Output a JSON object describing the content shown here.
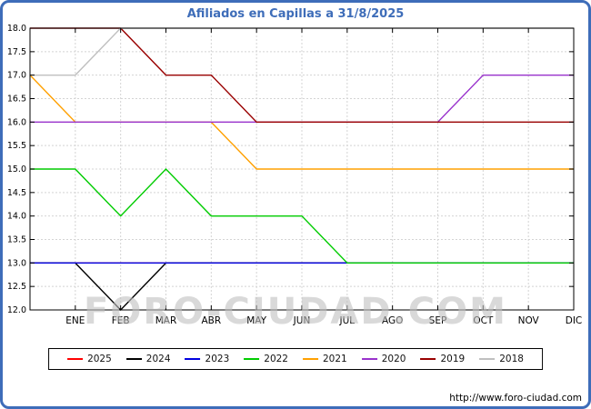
{
  "title": {
    "text": "Afiliados en Capillas a 31/8/2025"
  },
  "watermark": "FORO-CIUDAD.COM",
  "footer": {
    "url": "http://www.foro-ciudad.com"
  },
  "colors": {
    "frame": "#3e6db9",
    "title": "#3e6db9",
    "grid": "#d4d4d4",
    "axis": "#000000"
  },
  "chart_data": {
    "type": "line",
    "title": "Afiliados en Capillas a 31/8/2025",
    "xlabel": "",
    "ylabel": "",
    "ylim": [
      12,
      18
    ],
    "ytick_step": 0.5,
    "ytick_labels": [
      "18.0",
      "17.5",
      "17.0",
      "16.5",
      "16.0",
      "15.5",
      "15.0",
      "14.5",
      "14.0",
      "13.5",
      "13.0",
      "12.5",
      "12.0"
    ],
    "months": [
      "ENE",
      "FEB",
      "MAR",
      "ABR",
      "MAY",
      "JUN",
      "JUL",
      "AGO",
      "SEP",
      "OCT",
      "NOV",
      "DIC"
    ],
    "point_positions": [
      "start",
      "ENE",
      "FEB",
      "MAR",
      "ABR",
      "MAY",
      "JUN",
      "JUL",
      "AGO",
      "SEP",
      "OCT",
      "NOV",
      "DIC"
    ],
    "grid": true,
    "legend_position": "bottom",
    "series": [
      {
        "name": "2025",
        "color": "#ff0000",
        "values": [
          13,
          13,
          13,
          13,
          13,
          13,
          13,
          13,
          13,
          null,
          null,
          null,
          null
        ]
      },
      {
        "name": "2024",
        "color": "#000000",
        "values": [
          13,
          13,
          12,
          13,
          13,
          13,
          13,
          13,
          13,
          13,
          13,
          13,
          13
        ]
      },
      {
        "name": "2023",
        "color": "#0000e0",
        "values": [
          13,
          13,
          13,
          13,
          13,
          13,
          13,
          13,
          13,
          13,
          13,
          13,
          13
        ]
      },
      {
        "name": "2022",
        "color": "#00cc00",
        "values": [
          15,
          15,
          14,
          15,
          14,
          14,
          14,
          13,
          13,
          13,
          13,
          13,
          13
        ]
      },
      {
        "name": "2021",
        "color": "#ffa000",
        "values": [
          17,
          16,
          16,
          16,
          16,
          15,
          15,
          15,
          15,
          15,
          15,
          15,
          15
        ]
      },
      {
        "name": "2020",
        "color": "#9932cc",
        "values": [
          16,
          16,
          16,
          16,
          16,
          16,
          16,
          16,
          16,
          16,
          17,
          17,
          17
        ]
      },
      {
        "name": "2019",
        "color": "#990000",
        "values": [
          18,
          18,
          18,
          17,
          17,
          16,
          16,
          16,
          16,
          16,
          16,
          16,
          16
        ]
      },
      {
        "name": "2018",
        "color": "#bfbfbf",
        "values": [
          17,
          17,
          18,
          18,
          18,
          18,
          18,
          18,
          18,
          18,
          18,
          18,
          18
        ]
      }
    ]
  }
}
